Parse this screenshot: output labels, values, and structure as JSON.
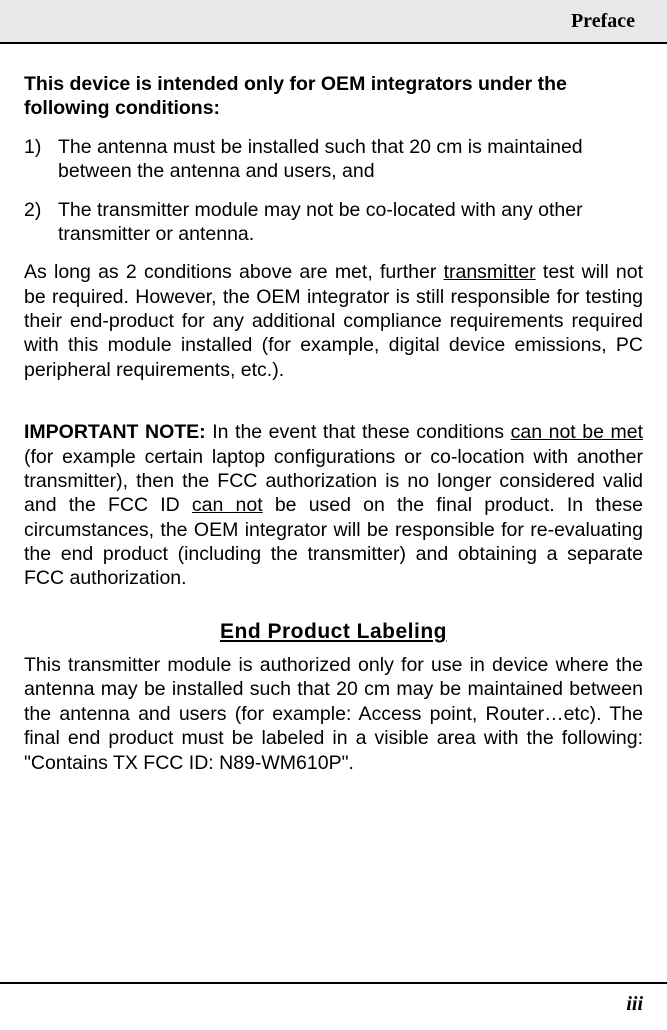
{
  "header": {
    "title": "Preface"
  },
  "intro": {
    "heading": "This device is intended only for OEM integrators under the following conditions:"
  },
  "conditions": [
    {
      "num": "1)",
      "text": "The antenna must be installed such that 20 cm is maintained between the antenna and users, and"
    },
    {
      "num": "2)",
      "text": "The transmitter module may not be co-located with any other transmitter or antenna."
    }
  ],
  "as_long": {
    "pre": "As long as 2 conditions above are met, further ",
    "u1": "transmitter",
    "post": " test will not be required. However, the OEM integrator is still responsible for testing their end-product for any additional compliance requirements required with this module installed (for example, digital device emissions, PC peripheral requirements, etc.)."
  },
  "important": {
    "label": "IMPORTANT NOTE:",
    "seg1": " In the event that these conditions ",
    "u1": "can not be met",
    "seg2": " (for example certain laptop configurations or co-location with another transmitter), then the FCC authorization is no longer considered valid and the FCC ID ",
    "u2": "can not",
    "seg3": " be used on the final product. In these circumstances, the OEM integrator will be responsible for re-evaluating the end product (including the transmitter) and obtaining a separate FCC authorization."
  },
  "end_product": {
    "title": "End Product Labeling",
    "body": "This transmitter module is authorized only for use in device where the antenna may be installed such that 20 cm may be maintained between the antenna and users (for example: Access point, Router…etc). The final end product must be labeled in a visible area with the following: \"Contains TX FCC ID: N89-WM610P\"."
  },
  "page_number": "iii",
  "colors": {
    "header_bg": "#e8e8e8",
    "rule": "#000000",
    "text": "#000000",
    "page_bg": "#ffffff"
  },
  "typography": {
    "body_font": "Arial",
    "header_font": "Times New Roman",
    "body_size_pt": 15,
    "header_size_pt": 15,
    "section_title_size_pt": 16
  }
}
